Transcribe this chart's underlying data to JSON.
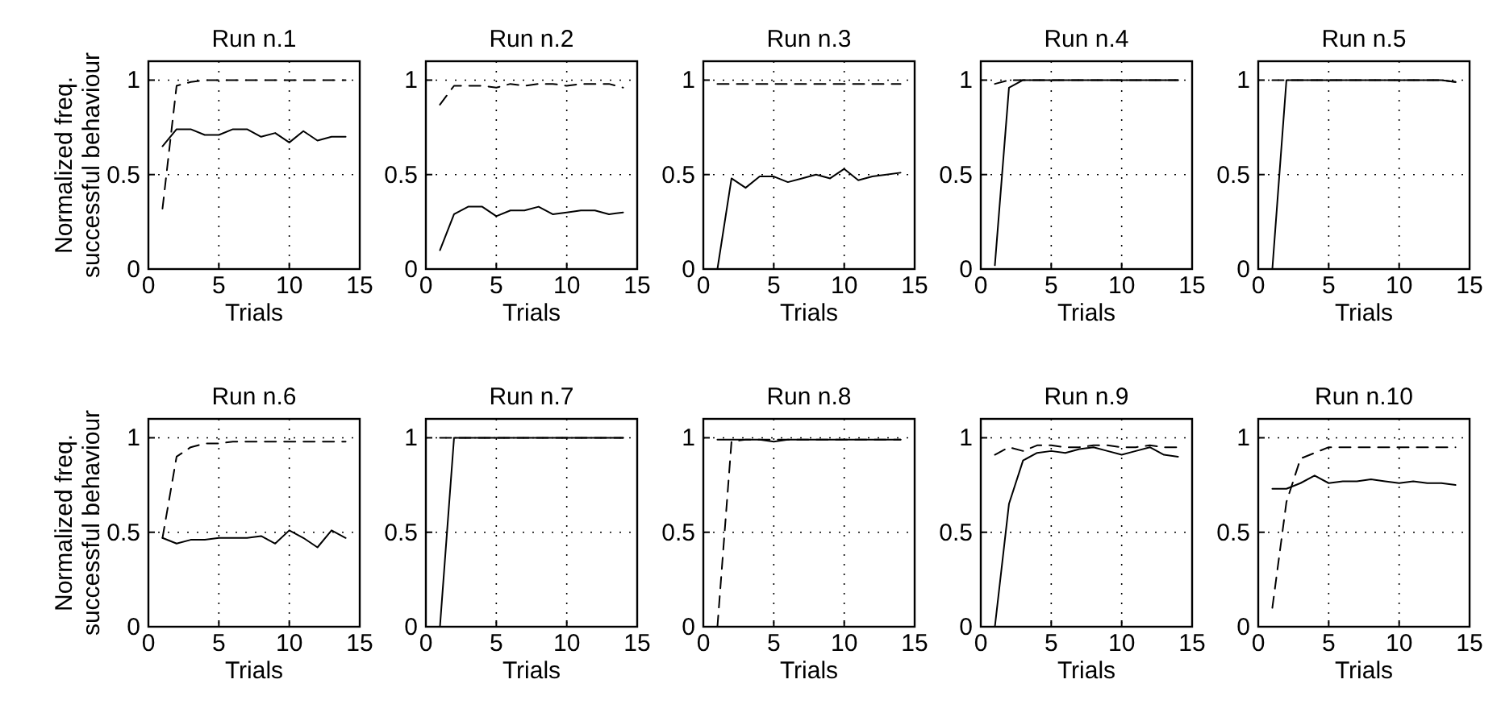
{
  "chart_data": [
    {
      "type": "line",
      "title": "Run n.1",
      "xlabel": "Trials",
      "ylabel": "Normalized freq.\nsuccessful behaviour",
      "xlim": [
        0,
        15
      ],
      "xticks": [
        0,
        5,
        10,
        15
      ],
      "ylim": [
        0,
        1.1
      ],
      "yticks": [
        0,
        0.5,
        1
      ],
      "grid": true,
      "x": [
        1,
        2,
        3,
        4,
        5,
        6,
        7,
        8,
        9,
        10,
        11,
        12,
        13,
        14
      ],
      "series": [
        {
          "color": "#000000",
          "line_style": "solid",
          "values": [
            0.65,
            0.74,
            0.74,
            0.71,
            0.71,
            0.74,
            0.74,
            0.7,
            0.72,
            0.67,
            0.73,
            0.68,
            0.7,
            0.7
          ]
        },
        {
          "color": "#000000",
          "line_style": "dashed",
          "values": [
            0.32,
            0.97,
            0.99,
            1,
            1,
            1,
            1,
            1,
            1,
            1,
            1,
            1,
            1,
            1
          ]
        }
      ]
    },
    {
      "type": "line",
      "title": "Run n.2",
      "xlabel": "Trials",
      "xlim": [
        0,
        15
      ],
      "xticks": [
        0,
        5,
        10,
        15
      ],
      "ylim": [
        0,
        1.1
      ],
      "yticks": [
        0,
        0.5,
        1
      ],
      "grid": true,
      "x": [
        1,
        2,
        3,
        4,
        5,
        6,
        7,
        8,
        9,
        10,
        11,
        12,
        13,
        14
      ],
      "series": [
        {
          "color": "#000000",
          "line_style": "solid",
          "values": [
            0.1,
            0.29,
            0.33,
            0.33,
            0.28,
            0.31,
            0.31,
            0.33,
            0.29,
            0.3,
            0.31,
            0.31,
            0.29,
            0.3
          ]
        },
        {
          "color": "#000000",
          "line_style": "dashed",
          "values": [
            0.87,
            0.97,
            0.97,
            0.97,
            0.96,
            0.98,
            0.97,
            0.98,
            0.98,
            0.97,
            0.98,
            0.98,
            0.98,
            0.96
          ]
        }
      ]
    },
    {
      "type": "line",
      "title": "Run n.3",
      "xlabel": "Trials",
      "xlim": [
        0,
        15
      ],
      "xticks": [
        0,
        5,
        10,
        15
      ],
      "ylim": [
        0,
        1.1
      ],
      "yticks": [
        0,
        0.5,
        1
      ],
      "grid": true,
      "x": [
        1,
        2,
        3,
        4,
        5,
        6,
        7,
        8,
        9,
        10,
        11,
        12,
        13,
        14
      ],
      "series": [
        {
          "color": "#000000",
          "line_style": "solid",
          "values": [
            0,
            0.48,
            0.43,
            0.49,
            0.49,
            0.46,
            0.48,
            0.5,
            0.48,
            0.53,
            0.47,
            0.49,
            0.5,
            0.51
          ]
        },
        {
          "color": "#000000",
          "line_style": "dashed",
          "values": [
            0.98,
            0.98,
            0.98,
            0.98,
            0.98,
            0.98,
            0.98,
            0.98,
            0.98,
            0.98,
            0.98,
            0.98,
            0.98,
            0.98
          ]
        }
      ]
    },
    {
      "type": "line",
      "title": "Run n.4",
      "xlabel": "Trials",
      "xlim": [
        0,
        15
      ],
      "xticks": [
        0,
        5,
        10,
        15
      ],
      "ylim": [
        0,
        1.1
      ],
      "yticks": [
        0,
        0.5,
        1
      ],
      "grid": true,
      "x": [
        1,
        2,
        3,
        4,
        5,
        6,
        7,
        8,
        9,
        10,
        11,
        12,
        13,
        14
      ],
      "series": [
        {
          "color": "#000000",
          "line_style": "solid",
          "values": [
            0.02,
            0.96,
            1,
            1,
            1,
            1,
            1,
            1,
            1,
            1,
            1,
            1,
            1,
            1
          ]
        },
        {
          "color": "#000000",
          "line_style": "dashed",
          "values": [
            0.98,
            1,
            1,
            1,
            1,
            1,
            1,
            1,
            1,
            1,
            1,
            1,
            1,
            1
          ]
        }
      ]
    },
    {
      "type": "line",
      "title": "Run n.5",
      "xlabel": "Trials",
      "xlim": [
        0,
        15
      ],
      "xticks": [
        0,
        5,
        10,
        15
      ],
      "ylim": [
        0,
        1.1
      ],
      "yticks": [
        0,
        0.5,
        1
      ],
      "grid": true,
      "x": [
        1,
        2,
        3,
        4,
        5,
        6,
        7,
        8,
        9,
        10,
        11,
        12,
        13,
        14
      ],
      "series": [
        {
          "color": "#000000",
          "line_style": "solid",
          "values": [
            0,
            1,
            1,
            1,
            1,
            1,
            1,
            1,
            1,
            1,
            1,
            1,
            1,
            0.99
          ]
        },
        {
          "color": "#000000",
          "line_style": "dashed",
          "values": [
            1,
            1,
            1,
            1,
            1,
            1,
            1,
            1,
            1,
            1,
            1,
            1,
            1,
            0.99
          ]
        }
      ]
    },
    {
      "type": "line",
      "title": "Run n.6",
      "xlabel": "Trials",
      "ylabel": "Normalized freq.\nsuccessful behaviour",
      "xlim": [
        0,
        15
      ],
      "xticks": [
        0,
        5,
        10,
        15
      ],
      "ylim": [
        0,
        1.1
      ],
      "yticks": [
        0,
        0.5,
        1
      ],
      "grid": true,
      "x": [
        1,
        2,
        3,
        4,
        5,
        6,
        7,
        8,
        9,
        10,
        11,
        12,
        13,
        14
      ],
      "series": [
        {
          "color": "#000000",
          "line_style": "solid",
          "values": [
            0.47,
            0.44,
            0.46,
            0.46,
            0.47,
            0.47,
            0.47,
            0.48,
            0.44,
            0.51,
            0.47,
            0.42,
            0.51,
            0.47
          ]
        },
        {
          "color": "#000000",
          "line_style": "dashed",
          "values": [
            0.47,
            0.9,
            0.95,
            0.97,
            0.97,
            0.98,
            0.98,
            0.98,
            0.98,
            0.98,
            0.98,
            0.98,
            0.98,
            0.98
          ]
        }
      ]
    },
    {
      "type": "line",
      "title": "Run n.7",
      "xlabel": "Trials",
      "xlim": [
        0,
        15
      ],
      "xticks": [
        0,
        5,
        10,
        15
      ],
      "ylim": [
        0,
        1.1
      ],
      "yticks": [
        0,
        0.5,
        1
      ],
      "grid": true,
      "x": [
        1,
        2,
        3,
        4,
        5,
        6,
        7,
        8,
        9,
        10,
        11,
        12,
        13,
        14
      ],
      "series": [
        {
          "color": "#000000",
          "line_style": "solid",
          "values": [
            0,
            1,
            1,
            1,
            1,
            1,
            1,
            1,
            1,
            1,
            1,
            1,
            1,
            1
          ]
        },
        {
          "color": "#000000",
          "line_style": "dashed",
          "values": [
            1,
            1,
            1,
            1,
            1,
            1,
            1,
            1,
            1,
            1,
            1,
            1,
            1,
            1
          ]
        }
      ]
    },
    {
      "type": "line",
      "title": "Run n.8",
      "xlabel": "Trials",
      "xlim": [
        0,
        15
      ],
      "xticks": [
        0,
        5,
        10,
        15
      ],
      "ylim": [
        0,
        1.1
      ],
      "yticks": [
        0,
        0.5,
        1
      ],
      "grid": true,
      "x": [
        1,
        2,
        3,
        4,
        5,
        6,
        7,
        8,
        9,
        10,
        11,
        12,
        13,
        14
      ],
      "series": [
        {
          "color": "#000000",
          "line_style": "solid",
          "values": [
            0.99,
            0.99,
            0.99,
            0.99,
            0.98,
            0.99,
            0.99,
            0.99,
            0.99,
            0.99,
            0.99,
            0.99,
            0.99,
            0.99
          ]
        },
        {
          "color": "#000000",
          "line_style": "dashed",
          "values": [
            0,
            0.98,
            0.99,
            0.99,
            0.99,
            0.99,
            0.99,
            0.99,
            0.99,
            0.99,
            0.99,
            0.99,
            0.99,
            0.99
          ]
        }
      ]
    },
    {
      "type": "line",
      "title": "Run n.9",
      "xlabel": "Trials",
      "xlim": [
        0,
        15
      ],
      "xticks": [
        0,
        5,
        10,
        15
      ],
      "ylim": [
        0,
        1.1
      ],
      "yticks": [
        0,
        0.5,
        1
      ],
      "grid": true,
      "x": [
        1,
        2,
        3,
        4,
        5,
        6,
        7,
        8,
        9,
        10,
        11,
        12,
        13,
        14
      ],
      "series": [
        {
          "color": "#000000",
          "line_style": "solid",
          "values": [
            0,
            0.65,
            0.88,
            0.92,
            0.93,
            0.92,
            0.94,
            0.95,
            0.93,
            0.91,
            0.93,
            0.95,
            0.91,
            0.9
          ]
        },
        {
          "color": "#000000",
          "line_style": "dashed",
          "values": [
            0.91,
            0.95,
            0.93,
            0.96,
            0.96,
            0.95,
            0.95,
            0.96,
            0.96,
            0.95,
            0.95,
            0.96,
            0.95,
            0.95
          ]
        }
      ]
    },
    {
      "type": "line",
      "title": "Run n.10",
      "xlabel": "Trials",
      "xlim": [
        0,
        15
      ],
      "xticks": [
        0,
        5,
        10,
        15
      ],
      "ylim": [
        0,
        1.1
      ],
      "yticks": [
        0,
        0.5,
        1
      ],
      "grid": true,
      "x": [
        1,
        2,
        3,
        4,
        5,
        6,
        7,
        8,
        9,
        10,
        11,
        12,
        13,
        14
      ],
      "series": [
        {
          "color": "#000000",
          "line_style": "solid",
          "values": [
            0.73,
            0.73,
            0.76,
            0.8,
            0.76,
            0.77,
            0.77,
            0.78,
            0.77,
            0.76,
            0.77,
            0.76,
            0.76,
            0.75
          ]
        },
        {
          "color": "#000000",
          "line_style": "dashed",
          "values": [
            0.1,
            0.66,
            0.89,
            0.92,
            0.95,
            0.95,
            0.95,
            0.95,
            0.95,
            0.95,
            0.95,
            0.95,
            0.95,
            0.95
          ]
        }
      ]
    }
  ]
}
